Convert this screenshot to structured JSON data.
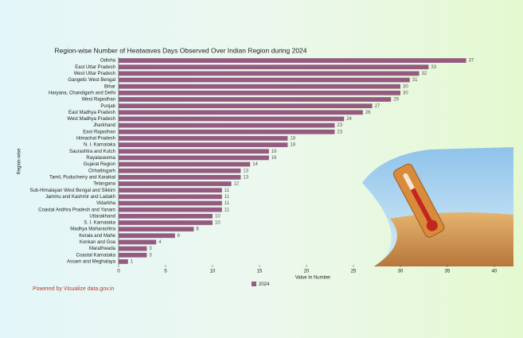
{
  "chart_data": {
    "type": "bar",
    "orientation": "horizontal",
    "title": "Region-wise Number of Heatwaves Days Observed Over Indian Region during 2024",
    "x_label": "Value In Number",
    "y_label": "Region-wise",
    "footer": "Powered by Visualize data.gov.in",
    "categories": [
      "Odisha",
      "East Uttar Pradesh",
      "West Uttar Pradesh",
      "Gangetic West Bengal",
      "Bihar",
      "Haryana, Chandigarh and Delhi",
      "West Rajasthan",
      "Punjab",
      "East Madhya Pradesh",
      "West Madhya Pradesh",
      "Jharkhand",
      "East Rajasthan",
      "Himachal Pradesh",
      "N. I. Karnataka",
      "Saurashtra and Kutch",
      "Rayalaseema",
      "Gujarat Region",
      "Chhattisgarh",
      "Tamil, Puducherry and Karaikal",
      "Telangana",
      "Sub-Himalayan West Bengal and Sikkim",
      "Jammu and Kashmir and Ladakh",
      "Vidarbha",
      "Coastal Andhra Pradesh and Yanam",
      "Uttarakhand",
      "S. I. Karnataka",
      "Madhya Maharashtra",
      "Kerala and Mahe",
      "Konkan and Goa",
      "Marathwada",
      "Coastal Karnataka",
      "Assam and Meghalaya"
    ],
    "series": [
      {
        "name": "2024",
        "color": "#955a7f",
        "values": [
          37,
          33,
          32,
          31,
          30,
          30,
          29,
          27,
          26,
          24,
          23,
          23,
          18,
          18,
          16,
          16,
          14,
          13,
          13,
          12,
          11,
          11,
          11,
          11,
          10,
          10,
          8,
          6,
          4,
          3,
          3,
          1
        ]
      }
    ],
    "xlim": [
      0,
      41
    ],
    "xticks": [
      0,
      5,
      10,
      15,
      20,
      25,
      30,
      35,
      40
    ]
  }
}
